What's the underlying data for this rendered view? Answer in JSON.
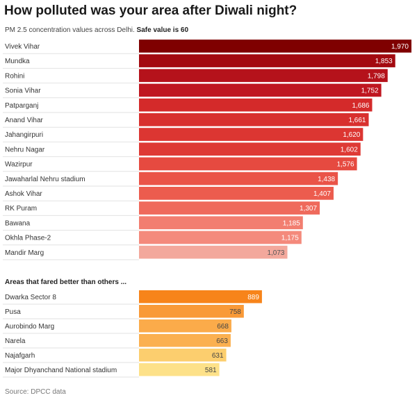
{
  "chart_data": [
    {
      "type": "bar",
      "orientation": "horizontal",
      "title": "How polluted was your area after Diwali night?",
      "subtitle": "PM 2.5 concentration values across Delhi.",
      "subtitle_bold": "Safe value is 60",
      "categories": [
        "Vivek Vihar",
        "Mundka",
        "Rohini",
        "Sonia Vihar",
        "Patparganj",
        "Anand Vihar",
        "Jahangirpuri",
        "Nehru Nagar",
        "Wazirpur",
        "Jawaharlal Nehru stadium",
        "Ashok Vihar",
        "RK Puram",
        "Bawana",
        "Okhla Phase-2",
        "Mandir Marg"
      ],
      "values": [
        1970,
        1853,
        1798,
        1752,
        1686,
        1661,
        1620,
        1602,
        1576,
        1438,
        1407,
        1307,
        1185,
        1175,
        1073
      ],
      "labels": [
        "1,970",
        "1,853",
        "1,798",
        "1,752",
        "1,686",
        "1,661",
        "1,620",
        "1,602",
        "1,576",
        "1,438",
        "1,407",
        "1,307",
        "1,185",
        "1,175",
        "1,073"
      ],
      "colors": [
        "#7f0000",
        "#a30a10",
        "#b5121b",
        "#bf1620",
        "#d42a2a",
        "#d8302e",
        "#dc3632",
        "#de3a35",
        "#e64a40",
        "#ea5448",
        "#ec5c4e",
        "#ef6a5c",
        "#f27e70",
        "#f48a7c",
        "#f3a89c"
      ],
      "label_colors": [
        "#fff",
        "#fff",
        "#fff",
        "#fff",
        "#fff",
        "#fff",
        "#fff",
        "#fff",
        "#fff",
        "#fff",
        "#fff",
        "#fff",
        "#fff",
        "#fff",
        "#555"
      ]
    },
    {
      "type": "bar",
      "orientation": "horizontal",
      "title": "Areas that fared better than others ...",
      "categories": [
        "Dwarka Sector 8",
        "Pusa",
        "Aurobindo Marg",
        "Narela",
        "Najafgarh",
        "Major Dhyanchand National stadium"
      ],
      "values": [
        889,
        758,
        668,
        663,
        631,
        581
      ],
      "labels": [
        "889",
        "758",
        "668",
        "663",
        "631",
        "581"
      ],
      "colors": [
        "#f7841a",
        "#f99a38",
        "#fbab4a",
        "#fbb050",
        "#fcce6e",
        "#fde189"
      ],
      "label_colors": [
        "#fff",
        "#444",
        "#444",
        "#444",
        "#444",
        "#444"
      ]
    }
  ],
  "source": "Source: DPCC data"
}
